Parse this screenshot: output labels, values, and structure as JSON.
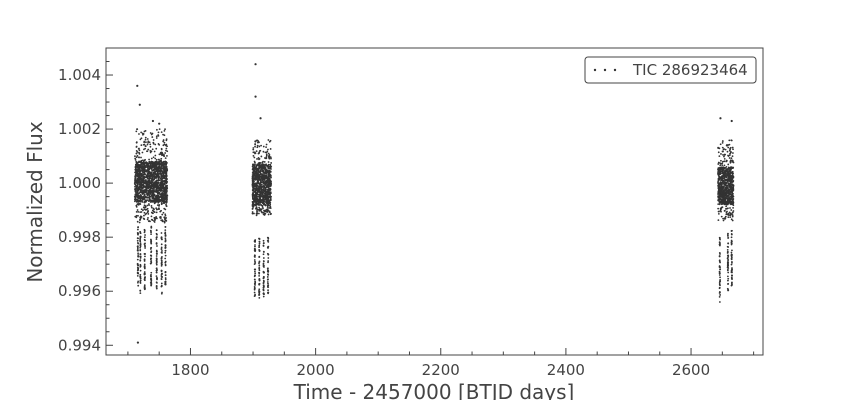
{
  "chart_data": {
    "type": "scatter",
    "xlabel": "Time - 2457000 [BTJD days]",
    "ylabel": "Normalized Flux",
    "xlim": [
      1665,
      2715
    ],
    "ylim": [
      0.99364,
      1.005
    ],
    "x_ticks": [
      1800,
      2000,
      2200,
      2400,
      2600
    ],
    "x_tick_labels": [
      "1800",
      "2000",
      "2200",
      "2400",
      "2600"
    ],
    "y_ticks": [
      0.994,
      0.996,
      0.998,
      1.0,
      1.002,
      1.004
    ],
    "y_tick_labels": [
      "0.994",
      "0.996",
      "0.998",
      "1.000",
      "1.002",
      "1.004"
    ],
    "grid": false,
    "legend_position": "top-right",
    "series": [
      {
        "name": "TIC 286923464",
        "color": "#333333",
        "marker": "dot",
        "segments": [
          {
            "x_start": 1711,
            "x_end": 1763,
            "core_low": 0.9993,
            "core_high": 1.0008,
            "scatter_low": 0.9985,
            "scatter_high": 1.002
          },
          {
            "x_start": 1899,
            "x_end": 1929,
            "core_low": 0.9992,
            "core_high": 1.0007,
            "scatter_low": 0.9988,
            "scatter_high": 1.0016
          },
          {
            "x_start": 2643,
            "x_end": 2668,
            "core_low": 0.9992,
            "core_high": 1.0006,
            "scatter_low": 0.9986,
            "scatter_high": 1.0016
          }
        ],
        "transit_dips": [
          {
            "x": 1716,
            "y_low": 0.9962,
            "y_high": 0.9984
          },
          {
            "x": 1720,
            "y_low": 0.9958,
            "y_high": 0.9982
          },
          {
            "x": 1727,
            "y_low": 0.996,
            "y_high": 0.9983
          },
          {
            "x": 1737,
            "y_low": 0.9962,
            "y_high": 0.9984
          },
          {
            "x": 1746,
            "y_low": 0.996,
            "y_high": 0.9983
          },
          {
            "x": 1754,
            "y_low": 0.9959,
            "y_high": 0.9982
          },
          {
            "x": 1760,
            "y_low": 0.9962,
            "y_high": 0.9984
          },
          {
            "x": 1903,
            "y_low": 0.9958,
            "y_high": 0.9979
          },
          {
            "x": 1910,
            "y_low": 0.9957,
            "y_high": 0.998
          },
          {
            "x": 1917,
            "y_low": 0.9958,
            "y_high": 0.9979
          },
          {
            "x": 1924,
            "y_low": 0.9959,
            "y_high": 0.998
          },
          {
            "x": 2646,
            "y_low": 0.9956,
            "y_high": 0.998
          },
          {
            "x": 2659,
            "y_low": 0.996,
            "y_high": 0.9982
          },
          {
            "x": 2665,
            "y_low": 0.9962,
            "y_high": 0.9983
          }
        ],
        "outliers": [
          {
            "x": 1715,
            "y": 1.0036
          },
          {
            "x": 1716,
            "y": 0.9941
          },
          {
            "x": 1719,
            "y": 1.0029
          },
          {
            "x": 1740,
            "y": 1.0023
          },
          {
            "x": 1750,
            "y": 1.0022
          },
          {
            "x": 1904,
            "y": 1.0044
          },
          {
            "x": 1904,
            "y": 1.0032
          },
          {
            "x": 1912,
            "y": 1.0024
          },
          {
            "x": 2647,
            "y": 1.0024
          },
          {
            "x": 2665,
            "y": 1.0023
          }
        ]
      }
    ]
  }
}
